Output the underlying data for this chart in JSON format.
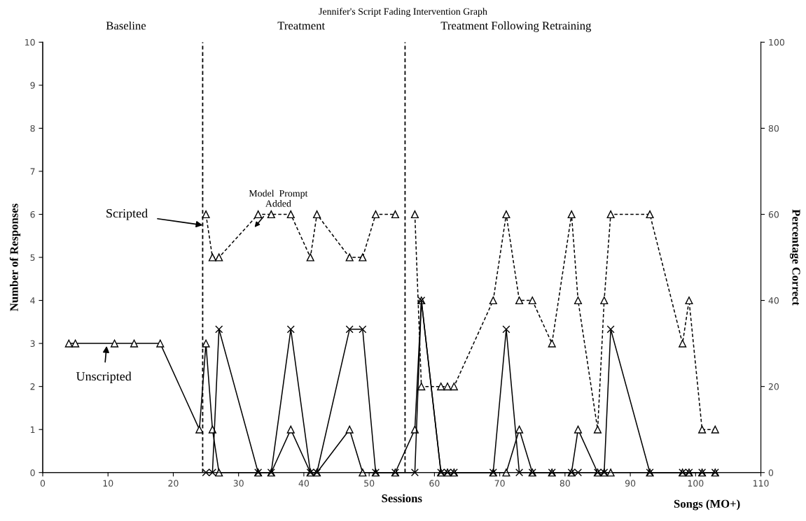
{
  "chart_data": {
    "type": "line",
    "title": "Jennifer's Script Fading Intervention Graph",
    "xlabel": "Sessions",
    "ylabel": "Number of Responses",
    "y2label": "Percentage Correct",
    "xlim": [
      0,
      110
    ],
    "xticks": [
      0,
      10,
      20,
      30,
      40,
      50,
      60,
      70,
      80,
      90,
      100,
      110
    ],
    "ylim": [
      0,
      10
    ],
    "yticks": [
      0,
      1,
      2,
      3,
      4,
      5,
      6,
      7,
      8,
      9,
      10
    ],
    "y2lim": [
      0,
      100
    ],
    "y2ticks": [
      0,
      20,
      40,
      60,
      80,
      100
    ],
    "grid": false,
    "legend": false,
    "series": [
      {
        "color": "#000000",
        "line_style": "dashed",
        "marker": "triangle",
        "x": [
          25,
          26,
          27,
          33,
          35,
          38,
          41,
          42,
          47,
          49,
          51,
          54
        ],
        "values": [
          6,
          5,
          5,
          6,
          6,
          6,
          5,
          6,
          5,
          5,
          6,
          6
        ]
      },
      {
        "color": "#000000",
        "line_style": "dashed",
        "marker": "triangle",
        "x": [
          57,
          58,
          61,
          62,
          63,
          69,
          71,
          73,
          75,
          78,
          81,
          82,
          85,
          86,
          87,
          93,
          98,
          99,
          101,
          103
        ],
        "values": [
          6,
          2,
          2,
          2,
          2,
          4,
          6,
          4,
          4,
          3,
          6,
          4,
          1,
          4,
          6,
          6,
          3,
          4,
          1,
          1
        ]
      },
      {
        "color": "#000000",
        "line_style": "solid",
        "marker": "triangle",
        "x": [
          4,
          5,
          11,
          14,
          18,
          24,
          25,
          26,
          27,
          33,
          35,
          38,
          41,
          42,
          47,
          49,
          51,
          54,
          57,
          58,
          61,
          62,
          63,
          69,
          71,
          73,
          75,
          78,
          81,
          82,
          85,
          86,
          87,
          93,
          98,
          99,
          101,
          103
        ],
        "values": [
          3,
          3,
          3,
          3,
          3,
          1,
          3,
          1,
          0,
          0,
          0,
          1,
          0,
          0,
          1,
          0,
          0,
          0,
          1,
          4,
          0,
          0,
          0,
          0,
          0,
          1,
          0,
          0,
          0,
          1,
          0,
          0,
          0,
          0,
          0,
          0,
          0,
          0
        ]
      },
      {
        "color": "#000000",
        "line_style": "solid",
        "marker": "cross",
        "axis": "y2",
        "x": [
          25,
          26,
          27,
          33,
          35,
          38,
          41,
          42,
          47,
          49,
          51,
          54,
          57,
          58,
          61,
          62,
          63,
          69,
          71,
          73,
          75,
          78,
          81,
          82,
          85,
          86,
          87,
          93,
          98,
          99,
          101,
          103
        ],
        "values": [
          0,
          0,
          33.3,
          0,
          0,
          33.3,
          0,
          0,
          33.3,
          33.3,
          0,
          0,
          0,
          40,
          0,
          0,
          0,
          0,
          33.3,
          0,
          0,
          0,
          0,
          0,
          0,
          0,
          33.3,
          0,
          0,
          0,
          0,
          0
        ]
      }
    ],
    "ref_lines": [
      {
        "axis": "x",
        "value": 24.5,
        "line_style": "dashed",
        "color": "#000000"
      },
      {
        "axis": "x",
        "value": 55.5,
        "line_style": "dashed",
        "color": "#000000"
      }
    ],
    "annotations": [
      "Baseline",
      "Treatment",
      "Treatment Following Retraining",
      {
        "text": "Scripted",
        "x": 24.5,
        "y": 5.75
      },
      "Unscripted",
      "Model  Prompt\nAdded",
      "Songs (MO+)"
    ]
  }
}
